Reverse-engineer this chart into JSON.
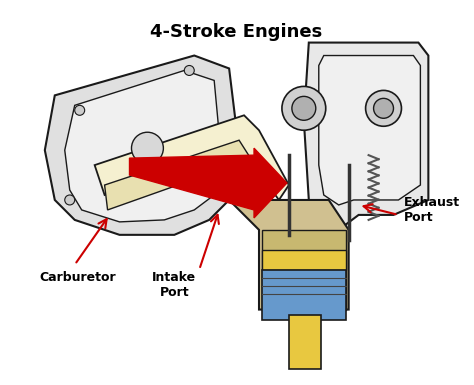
{
  "title": "4-Stroke Engines",
  "title_fontsize": 13,
  "title_fontweight": "bold",
  "bg_color": "#ffffff",
  "labels": {
    "carburetor": "Carburetor",
    "intake_port": "Intake\nPort",
    "exhaust_port": "Exhaust\nPort"
  },
  "label_fontsize": 9,
  "label_fontweight": "bold",
  "colors": {
    "engine_body": "#2a2a2a",
    "engine_fill": "#d4d4d4",
    "intake_fill": "#f5f0d0",
    "piston_top": "#e8c840",
    "piston_body": "#6699cc",
    "piston_rod": "#e8c840",
    "red_arrow": "#cc0000",
    "spring_color": "#555555",
    "outline": "#1a1a1a"
  }
}
